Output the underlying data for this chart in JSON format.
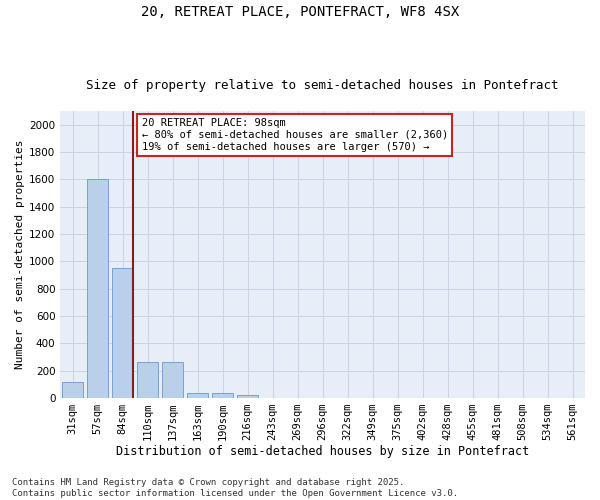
{
  "title1": "20, RETREAT PLACE, PONTEFRACT, WF8 4SX",
  "title2": "Size of property relative to semi-detached houses in Pontefract",
  "xlabel": "Distribution of semi-detached houses by size in Pontefract",
  "ylabel": "Number of semi-detached properties",
  "categories": [
    "31sqm",
    "57sqm",
    "84sqm",
    "110sqm",
    "137sqm",
    "163sqm",
    "190sqm",
    "216sqm",
    "243sqm",
    "269sqm",
    "296sqm",
    "322sqm",
    "349sqm",
    "375sqm",
    "402sqm",
    "428sqm",
    "455sqm",
    "481sqm",
    "508sqm",
    "534sqm",
    "561sqm"
  ],
  "values": [
    115,
    1600,
    950,
    260,
    260,
    40,
    35,
    20,
    0,
    0,
    0,
    0,
    0,
    0,
    0,
    0,
    0,
    0,
    0,
    0,
    0
  ],
  "bar_color": "#b8d0ea",
  "bar_edge_color": "#6699cc",
  "grid_color": "#c8d4e4",
  "bg_color": "#e8eef8",
  "vline_color": "#8b1a1a",
  "vline_x_idx": 2,
  "annotation_text": "20 RETREAT PLACE: 98sqm\n← 80% of semi-detached houses are smaller (2,360)\n19% of semi-detached houses are larger (570) →",
  "annotation_box_color": "#cc2222",
  "ylim": [
    0,
    2100
  ],
  "yticks": [
    0,
    200,
    400,
    600,
    800,
    1000,
    1200,
    1400,
    1600,
    1800,
    2000
  ],
  "footer": "Contains HM Land Registry data © Crown copyright and database right 2025.\nContains public sector information licensed under the Open Government Licence v3.0.",
  "title1_fontsize": 10,
  "title2_fontsize": 9,
  "xlabel_fontsize": 8.5,
  "ylabel_fontsize": 8,
  "tick_fontsize": 7.5,
  "annot_fontsize": 7.5,
  "footer_fontsize": 6.5
}
